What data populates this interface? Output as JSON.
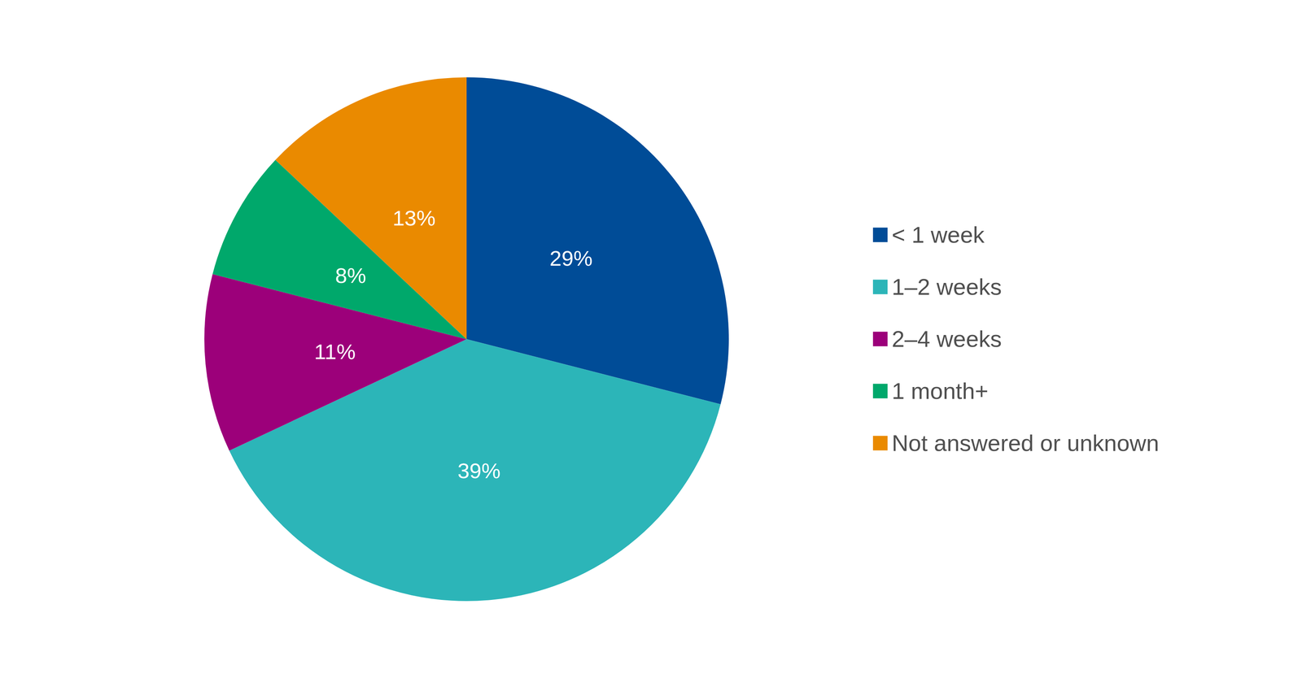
{
  "chart_data": {
    "type": "pie",
    "categories": [
      "< 1 week",
      "1–2 weeks",
      "2–4 weeks",
      "1 month+",
      "Not answered or unknown"
    ],
    "values": [
      29,
      39,
      11,
      8,
      13
    ],
    "value_labels": [
      "29%",
      "39%",
      "11%",
      "8%",
      "13%"
    ],
    "colors": [
      "#004c97",
      "#2cb5b8",
      "#9c007a",
      "#00a86b",
      "#ea8a00"
    ],
    "data_labels": true,
    "legend": "right"
  }
}
